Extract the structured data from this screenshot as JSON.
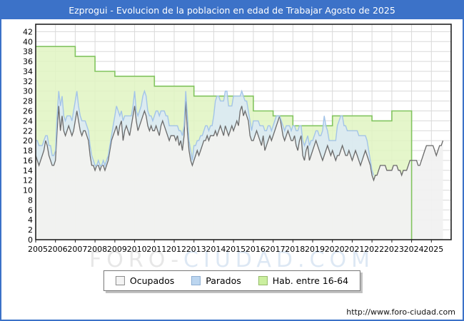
{
  "window": {
    "title": "Ezprogui - Evolucion de la poblacion en edad de Trabajar Agosto de 2025"
  },
  "watermark": {
    "part1": "FORO-",
    "part2": "CIUDAD.COM",
    "color1": "#e7e7e7",
    "color2": "#dde8f4"
  },
  "footer_url": "http://www.foro-ciudad.com",
  "legend": {
    "items": [
      {
        "label": "Ocupados",
        "fill": "#f4f4f4",
        "border": "#8c8c8c"
      },
      {
        "label": "Parados",
        "fill": "#bcd6f0",
        "border": "#8fafd2"
      },
      {
        "label": "Hab. entre 16-64",
        "fill": "#cbef9f",
        "border": "#97bb6d"
      }
    ]
  },
  "chart_data": {
    "type": "area",
    "title": "Ezprogui - Evolucion de la poblacion en edad de Trabajar Agosto de 2025",
    "xlabel": "",
    "ylabel": "",
    "xlim": [
      2005,
      2026
    ],
    "ylim": [
      0,
      43.5
    ],
    "grid": true,
    "legend_position": "bottom",
    "x_ticks": [
      2005,
      2006,
      2007,
      2008,
      2009,
      2010,
      2011,
      2012,
      2013,
      2014,
      2015,
      2016,
      2017,
      2018,
      2019,
      2020,
      2021,
      2022,
      2023,
      2024,
      2025
    ],
    "y_ticks": [
      0,
      2,
      4,
      6,
      8,
      10,
      12,
      14,
      16,
      18,
      20,
      22,
      24,
      26,
      28,
      30,
      32,
      34,
      36,
      38,
      40,
      42
    ],
    "series": [
      {
        "name": "Ocupados",
        "freq": "monthly",
        "start": "2005-01",
        "end": "2025-08",
        "line_color": "#6a6a6a",
        "fill_color": "#f1f1f1",
        "values": [
          17,
          16,
          15,
          16,
          17,
          18,
          20,
          19,
          17,
          16,
          15,
          15,
          16,
          22,
          27,
          22,
          25,
          22,
          21,
          22,
          23,
          22,
          21,
          22,
          24,
          26,
          24,
          22,
          21,
          22,
          22,
          21,
          20,
          17,
          15,
          15,
          14,
          15,
          15,
          14,
          15,
          15,
          14,
          15,
          16,
          18,
          20,
          21,
          22,
          23,
          21,
          23,
          24,
          20,
          22,
          23,
          22,
          21,
          23,
          25,
          27,
          24,
          22,
          23,
          24,
          25,
          26,
          25,
          23,
          22,
          23,
          22,
          22,
          23,
          22,
          21,
          23,
          24,
          23,
          22,
          21,
          20,
          21,
          21,
          21,
          20,
          21,
          19,
          20,
          18,
          21,
          28,
          22,
          18,
          16,
          15,
          16,
          17,
          18,
          17,
          18,
          19,
          20,
          20,
          21,
          20,
          21,
          21,
          21,
          22,
          21,
          22,
          23,
          22,
          21,
          23,
          22,
          21,
          22,
          23,
          22,
          23,
          24,
          23,
          26,
          27,
          25,
          26,
          25,
          24,
          21,
          20,
          20,
          21,
          22,
          21,
          20,
          19,
          21,
          18,
          19,
          20,
          21,
          20,
          21,
          22,
          23,
          24,
          25,
          23,
          21,
          20,
          21,
          22,
          21,
          20,
          20,
          21,
          19,
          18,
          20,
          21,
          17,
          16,
          18,
          19,
          16,
          17,
          18,
          19,
          20,
          19,
          18,
          17,
          16,
          17,
          18,
          19,
          18,
          17,
          18,
          17,
          16,
          17,
          17,
          18,
          19,
          18,
          17,
          17,
          18,
          17,
          16,
          17,
          18,
          17,
          16,
          15,
          16,
          17,
          18,
          17,
          16,
          15,
          13,
          12,
          13,
          13,
          14,
          15,
          15,
          15,
          15,
          14,
          14,
          14,
          14,
          15,
          15,
          15,
          14,
          14,
          13,
          14,
          14,
          14,
          15,
          16,
          16,
          16,
          16,
          16,
          15,
          15,
          16,
          17,
          18,
          19,
          19,
          19,
          19,
          19,
          18,
          17,
          18,
          19,
          19,
          20
        ]
      },
      {
        "name": "Parados",
        "freq": "monthly",
        "start": "2005-01",
        "end": "2025-08",
        "stacked_on": "Ocupados",
        "line_color": "#a3c4e8",
        "fill_color": "#d9e9f9",
        "values": [
          3,
          4,
          4,
          3,
          2,
          2,
          1,
          2,
          2,
          3,
          2,
          2,
          2,
          3,
          3,
          5,
          4,
          3,
          3,
          3,
          2,
          3,
          3,
          4,
          4,
          4,
          3,
          3,
          3,
          2,
          2,
          2,
          2,
          2,
          2,
          1,
          1,
          0,
          1,
          1,
          0,
          1,
          1,
          1,
          1,
          1,
          1,
          2,
          3,
          4,
          5,
          2,
          2,
          4,
          3,
          2,
          3,
          4,
          2,
          2,
          3,
          2,
          3,
          3,
          3,
          4,
          4,
          4,
          3,
          3,
          2,
          2,
          3,
          3,
          4,
          4,
          3,
          2,
          3,
          3,
          4,
          3,
          2,
          2,
          2,
          3,
          2,
          3,
          2,
          3,
          2,
          2,
          3,
          2,
          2,
          1,
          3,
          2,
          2,
          3,
          3,
          2,
          2,
          3,
          2,
          2,
          2,
          2,
          4,
          6,
          8,
          7,
          5,
          6,
          7,
          7,
          8,
          6,
          5,
          4,
          7,
          6,
          5,
          6,
          3,
          3,
          4,
          2,
          3,
          2,
          3,
          2,
          4,
          3,
          2,
          3,
          3,
          4,
          2,
          4,
          3,
          3,
          2,
          2,
          2,
          2,
          2,
          1,
          0,
          1,
          2,
          2,
          2,
          1,
          2,
          2,
          3,
          2,
          3,
          4,
          3,
          2,
          3,
          3,
          2,
          2,
          3,
          3,
          2,
          2,
          2,
          3,
          3,
          4,
          6,
          8,
          5,
          3,
          2,
          3,
          2,
          3,
          4,
          6,
          7,
          7,
          6,
          5,
          6,
          5,
          4,
          5,
          6,
          5,
          4,
          5,
          5,
          6,
          5,
          4,
          3,
          3,
          2,
          1,
          1,
          1,
          0,
          0,
          0,
          0,
          0,
          0,
          0,
          0,
          0,
          0,
          0,
          0,
          0,
          0,
          0,
          0,
          0,
          0,
          0,
          0,
          0,
          0,
          0,
          0,
          0,
          0,
          0,
          0,
          0,
          0,
          0,
          0,
          0,
          0,
          0,
          0,
          0,
          0,
          0,
          0,
          0,
          0
        ]
      },
      {
        "name": "Hab. entre 16-64",
        "freq": "annual",
        "start": "2005",
        "end_extends_to": "2024-01",
        "line_color": "#82c45f",
        "fill_color": "#e0f5c2",
        "years": [
          2005,
          2006,
          2007,
          2008,
          2009,
          2010,
          2011,
          2012,
          2013,
          2014,
          2015,
          2016,
          2017,
          2018,
          2019,
          2020,
          2021,
          2022,
          2023
        ],
        "values": [
          39,
          39,
          37,
          34,
          33,
          33,
          31,
          31,
          29,
          29,
          29,
          26,
          25,
          23,
          23,
          25,
          25,
          24,
          26
        ]
      }
    ]
  }
}
